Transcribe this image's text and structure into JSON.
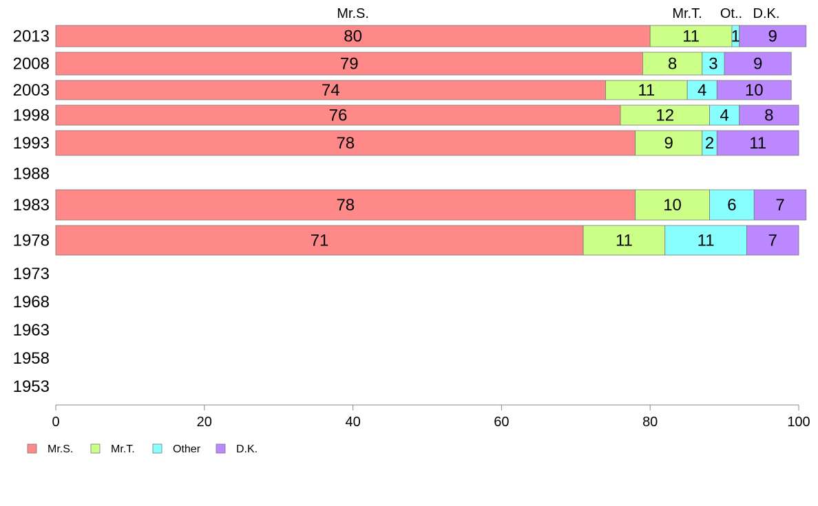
{
  "chart_data": {
    "type": "bar",
    "orientation": "horizontal",
    "stacked": true,
    "categories": [
      "2013",
      "2008",
      "2003",
      "1998",
      "1993",
      "1988",
      "1983",
      "1978",
      "1973",
      "1968",
      "1963",
      "1958",
      "1953"
    ],
    "series": [
      {
        "name": "Mr.S.",
        "color": "#ff8888",
        "values": [
          80,
          79,
          74,
          76,
          78,
          null,
          78,
          71,
          null,
          null,
          null,
          null,
          null
        ]
      },
      {
        "name": "Mr.T.",
        "color": "#ccff88",
        "values": [
          11,
          8,
          11,
          12,
          9,
          null,
          10,
          11,
          null,
          null,
          null,
          null,
          null
        ]
      },
      {
        "name": "Other",
        "color": "#88ffff",
        "values": [
          1,
          3,
          4,
          4,
          2,
          null,
          6,
          11,
          null,
          null,
          null,
          null,
          null
        ]
      },
      {
        "name": "D.K.",
        "color": "#bb88ff",
        "values": [
          9,
          9,
          10,
          8,
          11,
          null,
          7,
          7,
          null,
          null,
          null,
          null,
          null
        ]
      }
    ],
    "top_labels": [
      "Mr.S.",
      "Mr.T.",
      "Ot..",
      "D.K."
    ],
    "xlim": [
      0,
      100
    ],
    "xticks": [
      0,
      20,
      40,
      60,
      80,
      100
    ],
    "legend_position": "bottom-left",
    "grid": false
  }
}
